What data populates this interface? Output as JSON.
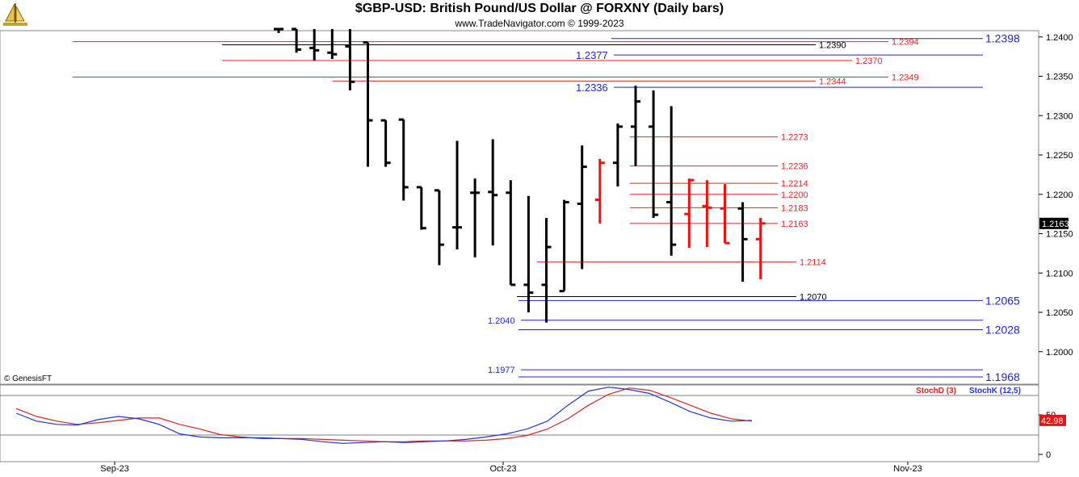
{
  "header": {
    "title": "$GBP-USD:  British Pound/US Dollar @ FORXNY  (Daily bars)",
    "subtitle": "www.TradeNavigator.com © 1999-2023"
  },
  "copyright": "© GenesisFT",
  "colors": {
    "up_bar": "#000000",
    "red_bar": "#ee1111",
    "support": "#1f27c9",
    "resistance": "#ee2222",
    "stoch_k": "#2233dd",
    "stoch_d": "#dd2222"
  },
  "chart_data": [
    {
      "type": "ohlc",
      "ylim": [
        1.195,
        1.2415
      ],
      "y_ticks": [
        "1.2400",
        "1.2350",
        "1.2300",
        "1.2250",
        "1.2200",
        "1.2150",
        "1.2100",
        "1.2050",
        "1.2000"
      ],
      "last_price_label": "1.2163",
      "x_labels": [
        "Sep-23",
        "Oct-23",
        "Nov-23"
      ],
      "bars": [
        {
          "o": 1.241,
          "h": 1.241,
          "l": 1.2405,
          "c": 1.241,
          "color": "black"
        },
        {
          "o": 1.241,
          "h": 1.241,
          "l": 1.238,
          "c": 1.2384,
          "color": "black"
        },
        {
          "o": 1.2386,
          "h": 1.241,
          "l": 1.237,
          "c": 1.2383,
          "color": "black"
        },
        {
          "o": 1.238,
          "h": 1.241,
          "l": 1.2372,
          "c": 1.2378,
          "color": "black"
        },
        {
          "o": 1.2388,
          "h": 1.241,
          "l": 1.2332,
          "c": 1.2343,
          "color": "black"
        },
        {
          "o": 1.2393,
          "h": 1.2393,
          "l": 1.2235,
          "c": 1.2294,
          "color": "black"
        },
        {
          "o": 1.2294,
          "h": 1.2294,
          "l": 1.2235,
          "c": 1.224,
          "color": "black"
        },
        {
          "o": 1.2295,
          "h": 1.2295,
          "l": 1.2192,
          "c": 1.2209,
          "color": "black"
        },
        {
          "o": 1.2209,
          "h": 1.2209,
          "l": 1.2155,
          "c": 1.2157,
          "color": "black"
        },
        {
          "o": 1.2205,
          "h": 1.2205,
          "l": 1.211,
          "c": 1.2136,
          "color": "black"
        },
        {
          "o": 1.2158,
          "h": 1.2268,
          "l": 1.213,
          "c": 1.2158,
          "color": "black"
        },
        {
          "o": 1.2202,
          "h": 1.222,
          "l": 1.212,
          "c": 1.2202,
          "color": "black"
        },
        {
          "o": 1.2203,
          "h": 1.227,
          "l": 1.2135,
          "c": 1.2199,
          "color": "black"
        },
        {
          "o": 1.2202,
          "h": 1.2218,
          "l": 1.2085,
          "c": 1.2085,
          "color": "black"
        },
        {
          "o": 1.2085,
          "h": 1.2198,
          "l": 1.205,
          "c": 1.2075,
          "color": "black"
        },
        {
          "o": 1.2085,
          "h": 1.217,
          "l": 1.2037,
          "c": 1.2133,
          "color": "black"
        },
        {
          "o": 1.2077,
          "h": 1.2193,
          "l": 1.2077,
          "c": 1.219,
          "color": "black"
        },
        {
          "o": 1.2188,
          "h": 1.2262,
          "l": 1.2105,
          "c": 1.2235,
          "color": "black"
        },
        {
          "o": 1.2193,
          "h": 1.2245,
          "l": 1.2163,
          "c": 1.224,
          "color": "red"
        },
        {
          "o": 1.224,
          "h": 1.229,
          "l": 1.221,
          "c": 1.2286,
          "color": "black"
        },
        {
          "o": 1.2286,
          "h": 1.2338,
          "l": 1.2236,
          "c": 1.2318,
          "color": "black"
        },
        {
          "o": 1.2286,
          "h": 1.2332,
          "l": 1.217,
          "c": 1.2174,
          "color": "black"
        },
        {
          "o": 1.219,
          "h": 1.2312,
          "l": 1.2122,
          "c": 1.2136,
          "color": "black"
        },
        {
          "o": 1.2175,
          "h": 1.222,
          "l": 1.2132,
          "c": 1.2218,
          "color": "red"
        },
        {
          "o": 1.2185,
          "h": 1.2218,
          "l": 1.2133,
          "c": 1.2183,
          "color": "red"
        },
        {
          "o": 1.2182,
          "h": 1.2213,
          "l": 1.2138,
          "c": 1.2138,
          "color": "red"
        },
        {
          "o": 1.2182,
          "h": 1.219,
          "l": 1.2089,
          "c": 1.2143,
          "color": "black"
        },
        {
          "o": 1.2143,
          "h": 1.217,
          "l": 1.2092,
          "c": 1.2163,
          "color": "red"
        }
      ],
      "levels": [
        {
          "value": 1.2398,
          "label": "1.2398",
          "color": "blue"
        },
        {
          "value": 1.2394,
          "label": "1.2394",
          "color": "red"
        },
        {
          "value": 1.239,
          "label": "1.2390",
          "color": "black"
        },
        {
          "value": 1.2377,
          "label": "1.2377",
          "color": "blue"
        },
        {
          "value": 1.237,
          "label": "1.2370",
          "color": "red"
        },
        {
          "value": 1.2349,
          "label": "1.2349",
          "color": "red"
        },
        {
          "value": 1.2344,
          "label": "1.2344",
          "color": "red"
        },
        {
          "value": 1.2336,
          "label": "1.2336",
          "color": "blue"
        },
        {
          "value": 1.2273,
          "label": "1.2273",
          "color": "red"
        },
        {
          "value": 1.2236,
          "label": "1.2236",
          "color": "red"
        },
        {
          "value": 1.2214,
          "label": "1.2214",
          "color": "red"
        },
        {
          "value": 1.22,
          "label": "1.2200",
          "color": "red"
        },
        {
          "value": 1.2183,
          "label": "1.2183",
          "color": "red"
        },
        {
          "value": 1.2163,
          "label": "1.2163",
          "color": "red"
        },
        {
          "value": 1.2114,
          "label": "1.2114",
          "color": "red"
        },
        {
          "value": 1.207,
          "label": "1.2070",
          "color": "black"
        },
        {
          "value": 1.2065,
          "label": "1.2065",
          "color": "blue"
        },
        {
          "value": 1.204,
          "label": "1.2040",
          "color": "blue"
        },
        {
          "value": 1.2028,
          "label": "1.2028",
          "color": "blue"
        },
        {
          "value": 1.1977,
          "label": "1.1977",
          "color": "blue"
        },
        {
          "value": 1.1968,
          "label": "1.1968",
          "color": "blue"
        }
      ]
    },
    {
      "type": "line",
      "ylim": [
        0,
        100
      ],
      "y_ticks": [
        "50",
        "0"
      ],
      "last_value_label": "42.98",
      "series": [
        {
          "name": "StochD (3)",
          "values": [
            58,
            48,
            42,
            38,
            40,
            43,
            46,
            46,
            38,
            32,
            25,
            22,
            20,
            20,
            20,
            19,
            18,
            17,
            16,
            16,
            17,
            17,
            17,
            18,
            20,
            24,
            32,
            45,
            62,
            76,
            84,
            81,
            72,
            62,
            52,
            45,
            42
          ]
        },
        {
          "name": "StochK (12,5)",
          "values": [
            52,
            42,
            38,
            37,
            44,
            48,
            45,
            38,
            26,
            22,
            21,
            21,
            21,
            20,
            19,
            16,
            14,
            15,
            16,
            15,
            16,
            17,
            19,
            22,
            26,
            32,
            42,
            62,
            80,
            85,
            82,
            77,
            66,
            54,
            46,
            42,
            43
          ]
        }
      ]
    }
  ]
}
